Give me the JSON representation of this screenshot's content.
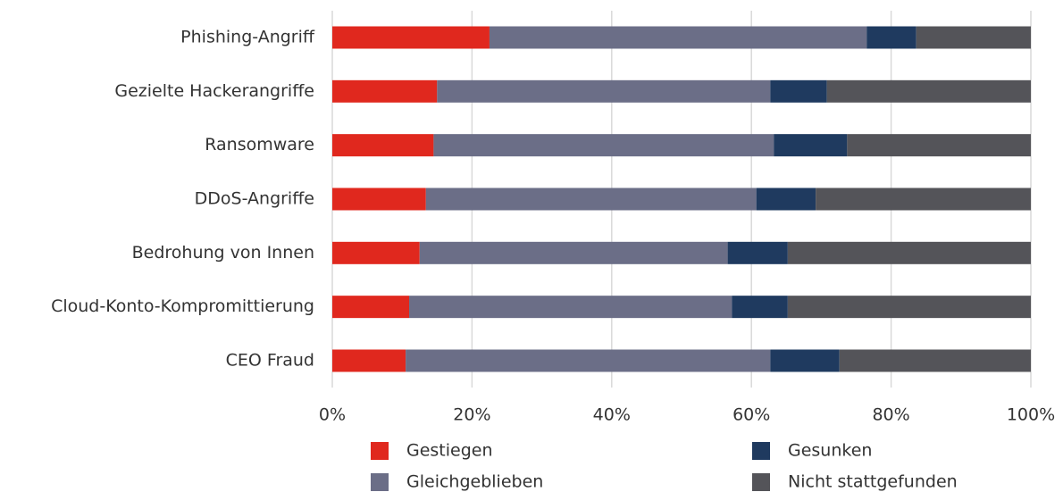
{
  "chart_data": {
    "type": "stacked_barh",
    "categories": [
      "Phishing-Angriff",
      "Gezielte Hackerangriffe",
      "Ransomware",
      "DDoS-Angriffe",
      "Bedrohung von Innen",
      "Cloud-Konto-Kompromittierung",
      "CEO Fraud"
    ],
    "series": [
      {
        "name": "Gestiegen",
        "color": "#e0281e",
        "values": [
          22.5,
          15.0,
          14.5,
          13.4,
          12.5,
          11.0,
          10.5
        ]
      },
      {
        "name": "Gleichgeblieben",
        "color": "#6b6e87",
        "values": [
          54.0,
          47.7,
          48.7,
          47.3,
          44.1,
          46.2,
          52.2
        ]
      },
      {
        "name": "Gesunken",
        "color": "#1f3a5f",
        "values": [
          7.1,
          8.1,
          10.5,
          8.5,
          8.6,
          8.0,
          9.9
        ]
      },
      {
        "name": "Nicht stattgefunden",
        "color": "#545459",
        "values": [
          16.4,
          29.2,
          26.3,
          30.8,
          34.8,
          34.8,
          27.4
        ]
      }
    ],
    "xlim": [
      0,
      100
    ],
    "xticks": [
      {
        "value": 0,
        "label": "0%"
      },
      {
        "value": 20,
        "label": "20%"
      },
      {
        "value": 40,
        "label": "40%"
      },
      {
        "value": 60,
        "label": "60%"
      },
      {
        "value": 80,
        "label": "80%"
      },
      {
        "value": 100,
        "label": "100%"
      }
    ],
    "grid": true
  }
}
